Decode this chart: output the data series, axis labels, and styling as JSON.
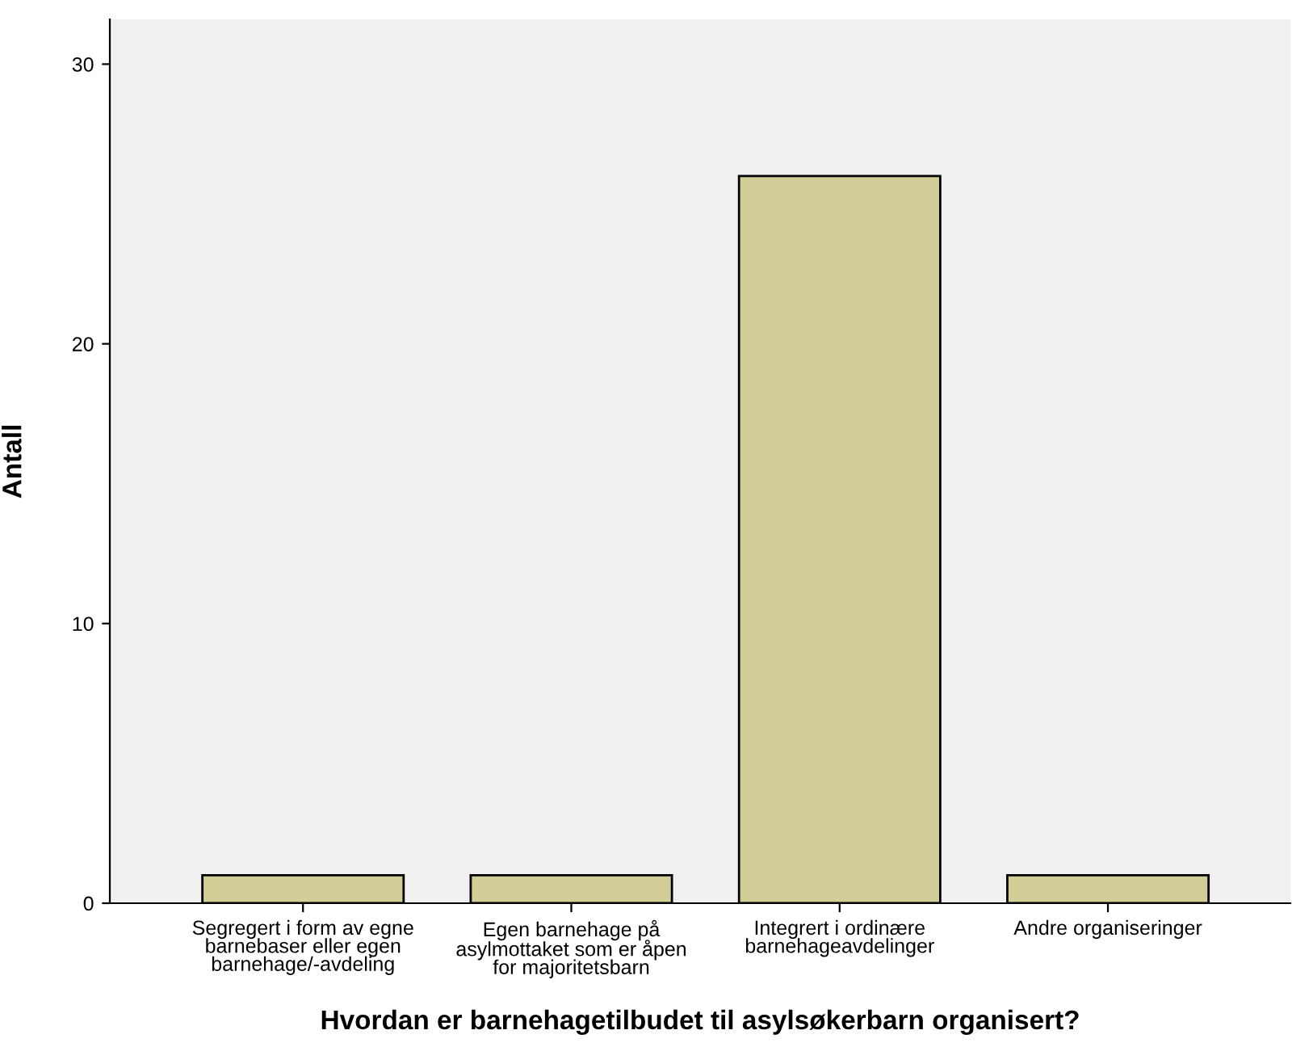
{
  "chart_data": {
    "type": "bar",
    "categories": [
      "Segregert i form av egne\nbarnebaser eller egen\nbarnehage/-avdeling",
      "Egen barnehage på\nasylmottaket som er åpen\nfor majoritetsbarn",
      "Integrert i ordinære\nbarnehageavdelinger",
      "Andre organiseringer"
    ],
    "values": [
      1,
      1,
      26,
      1
    ],
    "color": "#d3ce97",
    "xlabel": "Hvordan er barnehagetilbudet til asylsøkerbarn organisert?",
    "ylabel": "Antall",
    "ylim": [
      0,
      31.6
    ],
    "yticks": [
      0,
      10,
      20,
      30
    ],
    "grid": false,
    "legend": false
  }
}
